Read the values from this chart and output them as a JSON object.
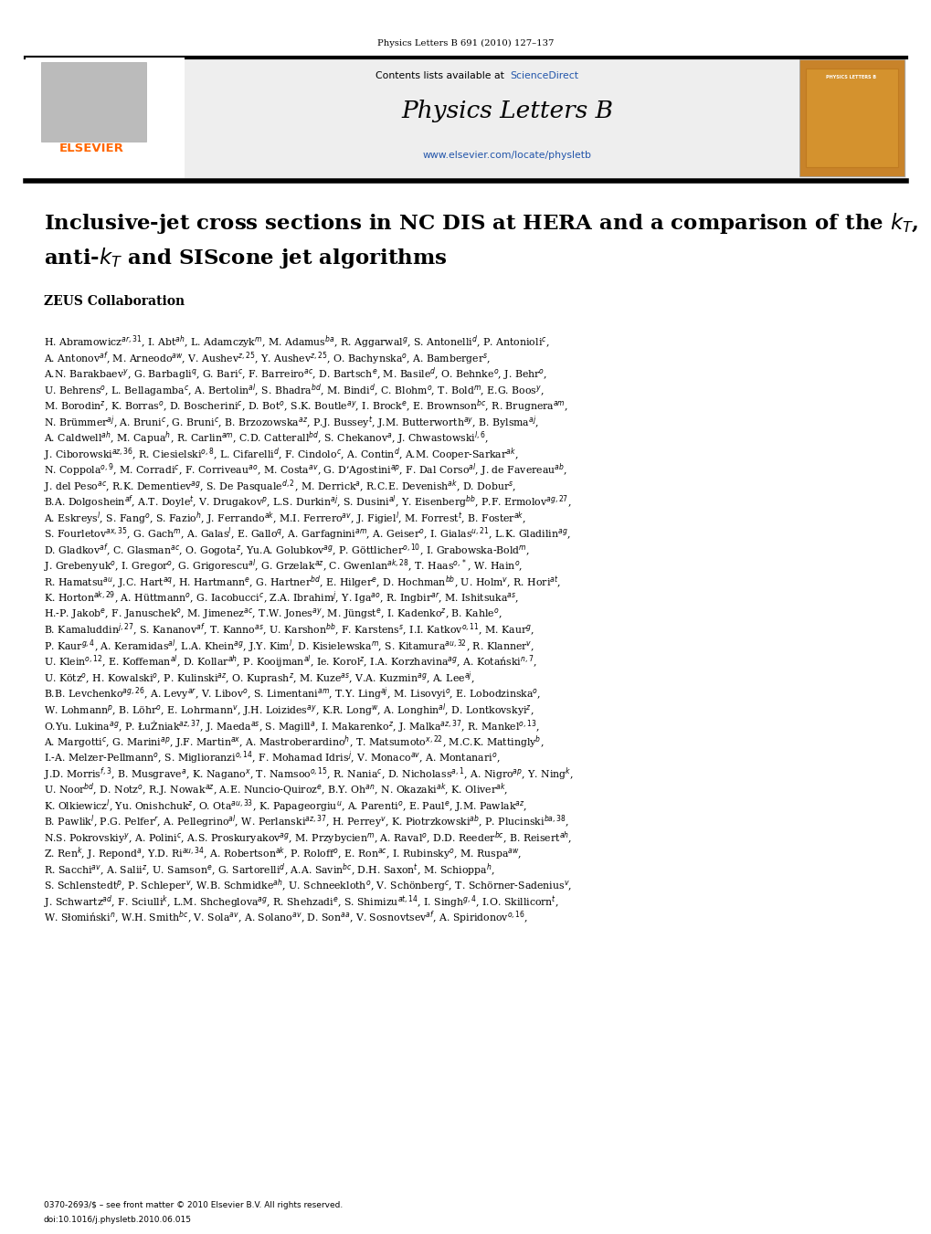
{
  "journal_ref": "Physics Letters B 691 (2010) 127–137",
  "journal_name": "Physics Letters B",
  "contents_text": "Contents lists available at ",
  "sciencedirect_text": "ScienceDirect",
  "url_text": "www.elsevier.com/locate/physletb",
  "elsevier_text": "ELSEVIER",
  "elsevier_color": "#FF6600",
  "title_line1": "Inclusive-jet cross sections in NC DIS at HERA and a comparison of the $k_T$,",
  "title_line2": "anti-$k_T$ and SIScone jet algorithms",
  "collaboration": "ZEUS Collaboration",
  "footer_text1": "0370-2693/$ – see front matter © 2010 Elsevier B.V. All rights reserved.",
  "footer_text2": "doi:10.1016/j.physletb.2010.06.015",
  "sciencedirect_color": "#2255AA",
  "url_color": "#2255AA",
  "background_color": "#ffffff",
  "header_bg": "#f0f0f0",
  "cover_color": "#C8832A",
  "author_lines": [
    "H. Abramowicz$^{ar,31}$, I. Abt$^{ah}$, L. Adamczyk$^{m}$, M. Adamus$^{ba}$, R. Aggarwal$^{g}$, S. Antonelli$^{d}$, P. Antonioli$^{c}$,",
    "A. Antonov$^{af}$, M. Arneodo$^{aw}$, V. Aushev$^{z,25}$, Y. Aushev$^{z,25}$, O. Bachynska$^{o}$, A. Bamberger$^{s}$,",
    "A.N. Barakbaev$^{y}$, G. Barbagli$^{q}$, G. Bari$^{c}$, F. Barreiro$^{ac}$, D. Bartsch$^{e}$, M. Basile$^{d}$, O. Behnke$^{o}$, J. Behr$^{o}$,",
    "U. Behrens$^{o}$, L. Bellagamba$^{c}$, A. Bertolin$^{al}$, S. Bhadra$^{bd}$, M. Bindi$^{d}$, C. Blohm$^{o}$, T. Bold$^{m}$, E.G. Boos$^{y}$,",
    "M. Borodin$^{z}$, K. Borras$^{o}$, D. Boscherini$^{c}$, D. Bot$^{o}$, S.K. Boutle$^{ay}$, I. Brock$^{e}$, E. Brownson$^{bc}$, R. Brugnera$^{am}$,",
    "N. Brümmer$^{aj}$, A. Bruni$^{c}$, G. Bruni$^{c}$, B. Brzozowska$^{az}$, P.J. Bussey$^{t}$, J.M. Butterworth$^{ay}$, B. Bylsma$^{aj}$,",
    "A. Caldwell$^{ah}$, M. Capua$^{h}$, R. Carlin$^{am}$, C.D. Catterall$^{bd}$, S. Chekanov$^{a}$, J. Chwastowski$^{l,6}$,",
    "J. Ciborowski$^{az,36}$, R. Ciesielski$^{o,8}$, L. Cifarelli$^{d}$, F. Cindolo$^{c}$, A. Contin$^{d}$, A.M. Cooper-Sarkar$^{ak}$,",
    "N. Coppola$^{o,9}$, M. Corradi$^{c}$, F. Corriveau$^{ao}$, M. Costa$^{av}$, G. D’Agostini$^{ap}$, F. Dal Corso$^{al}$, J. de Favereau$^{ab}$,",
    "J. del Peso$^{ac}$, R.K. Dementiev$^{ag}$, S. De Pasquale$^{d,2}$, M. Derrick$^{a}$, R.C.E. Devenish$^{ak}$, D. Dobur$^{s}$,",
    "B.A. Dolgoshein$^{af}$, A.T. Doyle$^{t}$, V. Drugakov$^{p}$, L.S. Durkin$^{aj}$, S. Dusini$^{al}$, Y. Eisenberg$^{bb}$, P.F. Ermolov$^{ag,27}$,",
    "A. Eskreys$^{l}$, S. Fang$^{o}$, S. Fazio$^{h}$, J. Ferrando$^{ak}$, M.I. Ferrero$^{av}$, J. Figiel$^{l}$, M. Forrest$^{t}$, B. Foster$^{ak}$,",
    "S. Fourletov$^{ax,35}$, G. Gach$^{m}$, A. Galas$^{l}$, E. Gallo$^{q}$, A. Garfagnini$^{am}$, A. Geiser$^{o}$, I. Gialas$^{u,21}$, L.K. Gladilin$^{ag}$,",
    "D. Gladkov$^{af}$, C. Glasman$^{ac}$, O. Gogota$^{z}$, Yu.A. Golubkov$^{ag}$, P. Göttlicher$^{o,10}$, I. Grabowska-Bold$^{m}$,",
    "J. Grebenyuk$^{o}$, I. Gregor$^{o}$, G. Grigorescu$^{al}$, G. Grzelak$^{az}$, C. Gwenlan$^{ak,28}$, T. Haas$^{o,*}$, W. Hain$^{o}$,",
    "R. Hamatsu$^{au}$, J.C. Hart$^{aq}$, H. Hartmann$^{e}$, G. Hartner$^{bd}$, E. Hilger$^{e}$, D. Hochman$^{bb}$, U. Holm$^{v}$, R. Hori$^{at}$,",
    "K. Horton$^{ak,29}$, A. Hüttmann$^{o}$, G. Iacobucci$^{c}$, Z.A. Ibrahim$^{j}$, Y. Iga$^{ao}$, R. Ingbir$^{ar}$, M. Ishitsuka$^{as}$,",
    "H.-P. Jakob$^{e}$, F. Januschek$^{o}$, M. Jimenez$^{ac}$, T.W. Jones$^{ay}$, M. Jüngst$^{e}$, I. Kadenko$^{z}$, B. Kahle$^{o}$,",
    "B. Kamaluddin$^{j,27}$, S. Kananov$^{af}$, T. Kanno$^{as}$, U. Karshon$^{bb}$, F. Karstens$^{s}$, I.I. Katkov$^{o,11}$, M. Kaur$^{g}$,",
    "P. Kaur$^{g,4}$, A. Keramidas$^{al}$, L.A. Khein$^{ag}$, J.Y. Kim$^{l}$, D. Kisielewska$^{m}$, S. Kitamura$^{au,32}$, R. Klanner$^{v}$,",
    "U. Klein$^{o,12}$, E. Koffeman$^{al}$, D. Kollar$^{ah}$, P. Kooijman$^{al}$, Ie. Korol$^{z}$, I.A. Korzhavina$^{ag}$, A. Kotański$^{n,7}$,",
    "U. Kötz$^{o}$, H. Kowalski$^{o}$, P. Kulinski$^{az}$, O. Kuprash$^{z}$, M. Kuze$^{as}$, V.A. Kuzmin$^{ag}$, A. Lee$^{aj}$,",
    "B.B. Levchenko$^{ag,26}$, A. Levy$^{ar}$, V. Libov$^{o}$, S. Limentani$^{am}$, T.Y. Ling$^{aj}$, M. Lisovyi$^{o}$, E. Lobodzinska$^{o}$,",
    "W. Lohmann$^{p}$, B. Löhr$^{o}$, E. Lohrmann$^{v}$, J.H. Loizides$^{ay}$, K.R. Long$^{w}$, A. Longhin$^{al}$, D. Lontkovskyi$^{z}$,",
    "O.Yu. Lukina$^{ag}$, P. ŁuŻniak$^{az,37}$, J. Maeda$^{as}$, S. Magill$^{a}$, I. Makarenko$^{z}$, J. Malka$^{az,37}$, R. Mankel$^{o,13}$,",
    "A. Margotti$^{c}$, G. Marini$^{ap}$, J.F. Martin$^{ax}$, A. Mastroberardino$^{h}$, T. Matsumoto$^{x,22}$, M.C.K. Mattingly$^{b}$,",
    "I.-A. Melzer-Pellmann$^{o}$, S. Miglioranzi$^{o,14}$, F. Mohamad Idris$^{j}$, V. Monaco$^{av}$, A. Montanari$^{o}$,",
    "J.D. Morris$^{f,3}$, B. Musgrave$^{a}$, K. Nagano$^{x}$, T. Namsoo$^{o,15}$, R. Nania$^{c}$, D. Nicholass$^{a,1}$, A. Nigro$^{ap}$, Y. Ning$^{k}$,",
    "U. Noor$^{bd}$, D. Notz$^{o}$, R.J. Nowak$^{az}$, A.E. Nuncio-Quiroz$^{e}$, B.Y. Oh$^{an}$, N. Okazaki$^{ak}$, K. Oliver$^{ak}$,",
    "K. Olkiewicz$^{l}$, Yu. Onishchuk$^{z}$, O. Ota$^{au,33}$, K. Papageorgiu$^{u}$, A. Parenti$^{o}$, E. Paul$^{e}$, J.M. Pawlak$^{az}$,",
    "B. Pawlik$^{l}$, P.G. Pelfer$^{r}$, A. Pellegrino$^{al}$, W. Perlanski$^{az,37}$, H. Perrey$^{v}$, K. Piotrzkowski$^{ab}$, P. Plucinski$^{ba,38}$,",
    "N.S. Pokrovskiy$^{y}$, A. Polini$^{c}$, A.S. Proskuryakov$^{ag}$, M. Przybycien$^{m}$, A. Raval$^{o}$, D.D. Reeder$^{bc}$, B. Reisert$^{ah}$,",
    "Z. Ren$^{k}$, J. Repond$^{a}$, Y.D. Ri$^{au,34}$, A. Robertson$^{ak}$, P. Roloff$^{o}$, E. Ron$^{ac}$, I. Rubinsky$^{o}$, M. Ruspa$^{aw}$,",
    "R. Sacchi$^{av}$, A. Salii$^{z}$, U. Samson$^{e}$, G. Sartorelli$^{d}$, A.A. Savin$^{bc}$, D.H. Saxon$^{t}$, M. Schioppa$^{h}$,",
    "S. Schlenstedt$^{p}$, P. Schleper$^{v}$, W.B. Schmidke$^{ah}$, U. Schneekloth$^{o}$, V. Schönberg$^{c}$, T. Schörner-Sadenius$^{v}$,",
    "J. Schwartz$^{ad}$, F. Sciulli$^{k}$, L.M. Shcheglova$^{ag}$, R. Shehzadi$^{e}$, S. Shimizu$^{at,14}$, I. Singh$^{g,4}$, I.O. Skillicorn$^{t}$,",
    "W. Słomiński$^{n}$, W.H. Smith$^{bc}$, V. Sola$^{av}$, A. Solano$^{av}$, D. Son$^{aa}$, V. Sosnovtsev$^{af}$, A. Spiridonov$^{o,16}$,"
  ]
}
